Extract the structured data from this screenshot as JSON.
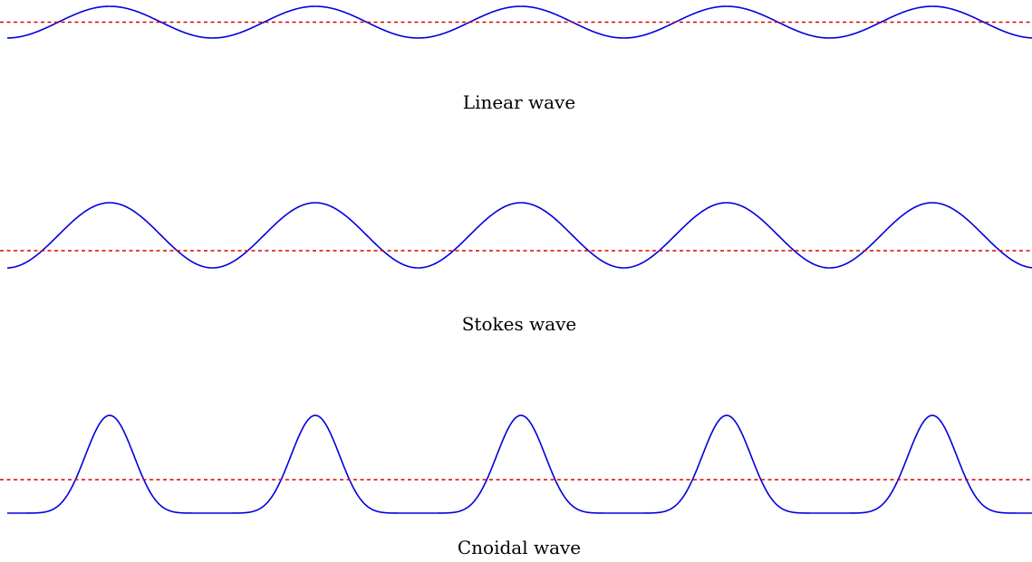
{
  "colors": {
    "wave": "#0000dd",
    "mean_level": "#dd0000",
    "background": "#ffffff"
  },
  "panels": [
    {
      "id": "linear",
      "caption": "Linear wave"
    },
    {
      "id": "stokes",
      "caption": "Stokes wave"
    },
    {
      "id": "cnoidal",
      "caption": "Cnoidal wave"
    }
  ]
}
